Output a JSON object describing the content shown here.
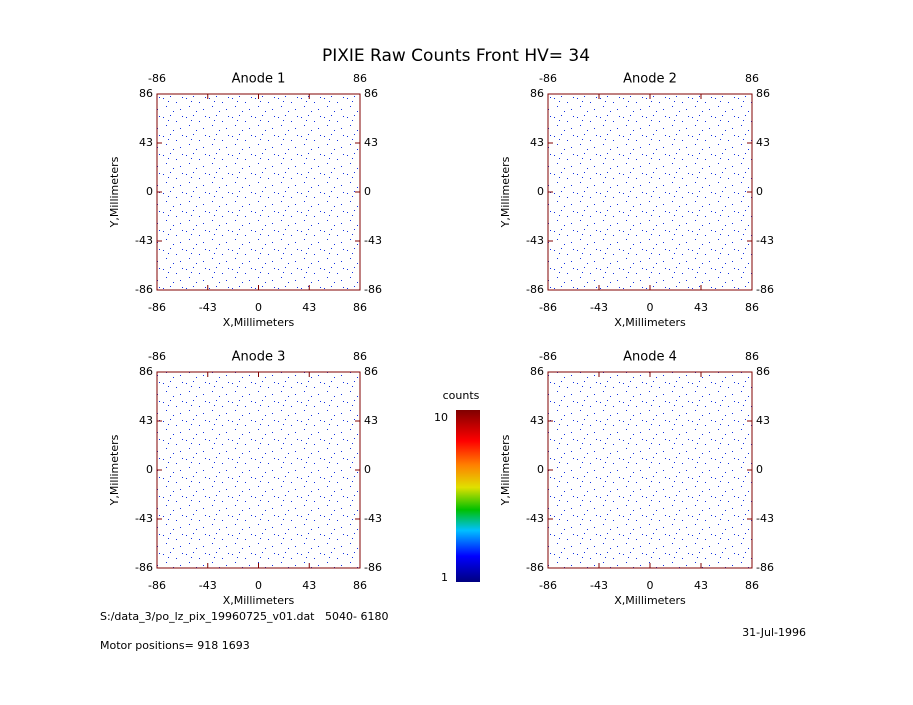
{
  "title": "PIXIE Raw Counts Front HV= 34",
  "chart_data": [
    {
      "type": "scatter",
      "title": "Anode 1",
      "xlabel": "X,Millimeters",
      "ylabel": "Y,Millimeters",
      "xlim": [
        -86,
        86
      ],
      "ylim": [
        -86,
        86
      ],
      "xticks": [
        -86,
        -43,
        0,
        43,
        86
      ],
      "yticks": [
        -86,
        -43,
        0,
        43,
        86
      ],
      "color": "#0000ff"
    },
    {
      "type": "scatter",
      "title": "Anode 2",
      "xlabel": "X,Millimeters",
      "ylabel": "Y,Millimeters",
      "xlim": [
        -86,
        86
      ],
      "ylim": [
        -86,
        86
      ],
      "xticks": [
        -86,
        -43,
        0,
        43,
        86
      ],
      "yticks": [
        -86,
        -43,
        0,
        43,
        86
      ],
      "color": "#0000ff"
    },
    {
      "type": "scatter",
      "title": "Anode 3",
      "xlabel": "X,Millimeters",
      "ylabel": "Y,Millimeters",
      "xlim": [
        -86,
        86
      ],
      "ylim": [
        -86,
        86
      ],
      "xticks": [
        -86,
        -43,
        0,
        43,
        86
      ],
      "yticks": [
        -86,
        -43,
        0,
        43,
        86
      ],
      "color": "#0000ff"
    },
    {
      "type": "scatter",
      "title": "Anode 4",
      "xlabel": "X,Millimeters",
      "ylabel": "Y,Millimeters",
      "xlim": [
        -86,
        86
      ],
      "ylim": [
        -86,
        86
      ],
      "xticks": [
        -86,
        -43,
        0,
        43,
        86
      ],
      "yticks": [
        -86,
        -43,
        0,
        43,
        86
      ],
      "color": "#0000ff"
    }
  ],
  "colorbar": {
    "label": "counts",
    "lim": [
      1,
      10
    ],
    "ticks": [
      1,
      10
    ]
  },
  "footer": {
    "file": "S:/data_3/po_lz_pix_19960725_v01.dat   5040- 6180",
    "motor": "Motor positions= 918 1693",
    "date": "31-Jul-1996"
  }
}
